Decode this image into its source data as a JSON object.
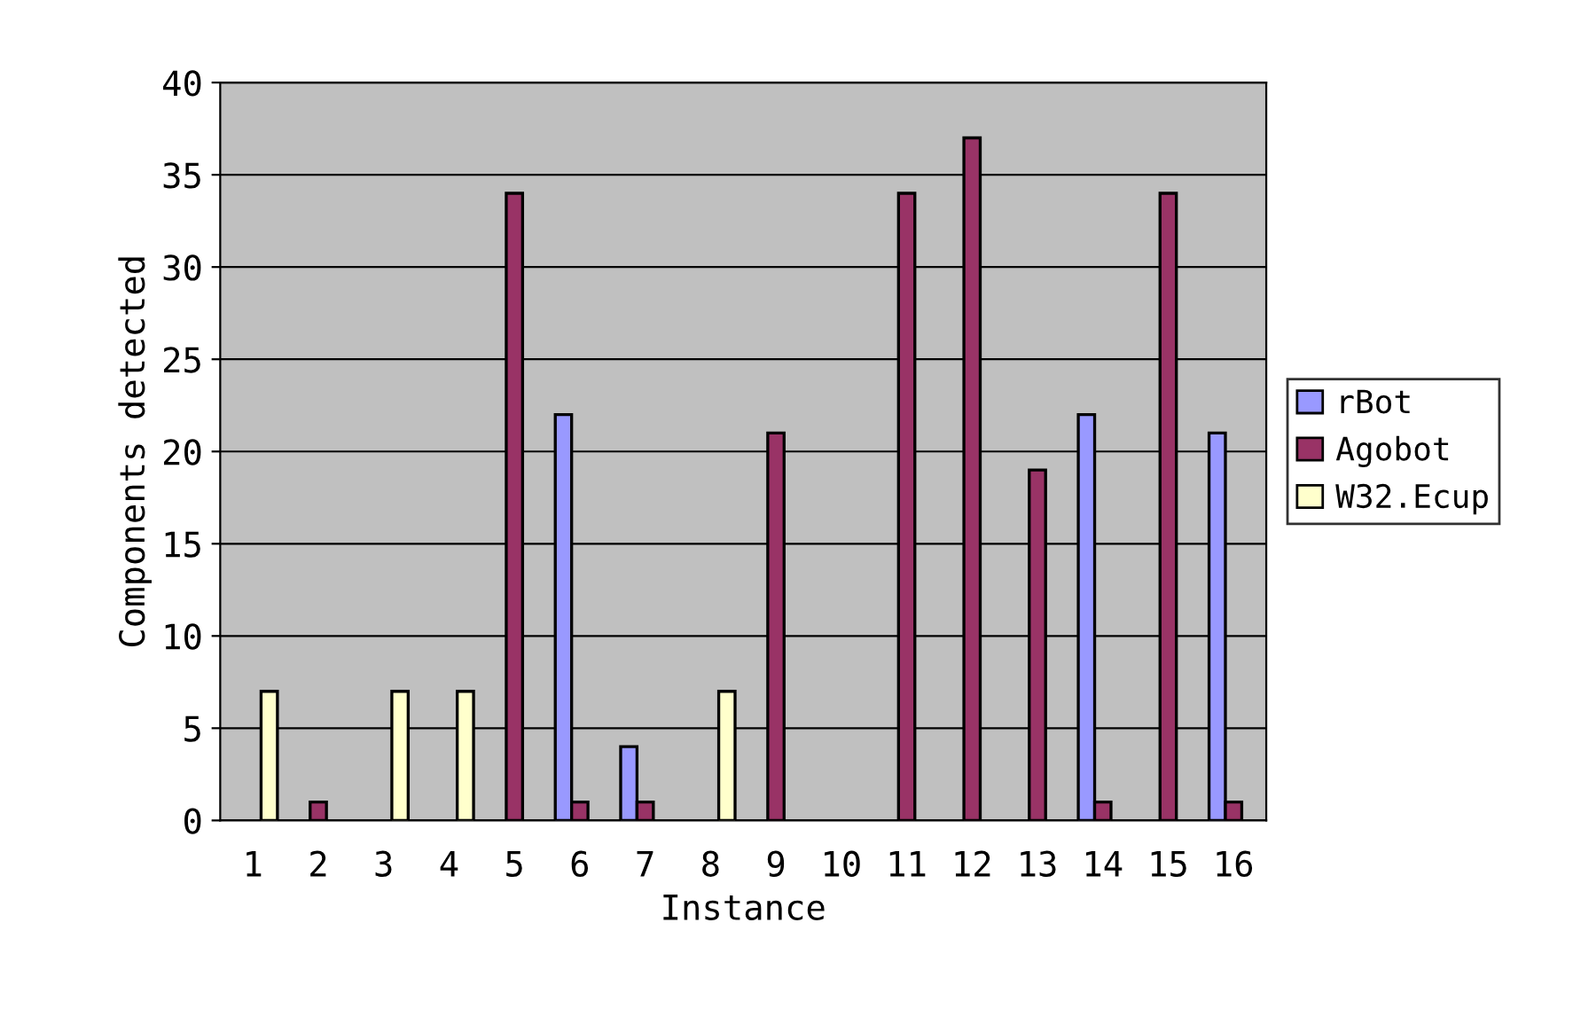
{
  "chart_data": {
    "type": "bar",
    "xlabel": "Instance",
    "ylabel": "Components detected",
    "categories": [
      "1",
      "2",
      "3",
      "4",
      "5",
      "6",
      "7",
      "8",
      "9",
      "10",
      "11",
      "12",
      "13",
      "14",
      "15",
      "16"
    ],
    "series": [
      {
        "name": "rBot",
        "color": "#9999ff",
        "values": [
          null,
          null,
          null,
          null,
          null,
          22,
          4,
          null,
          null,
          null,
          null,
          null,
          null,
          22,
          null,
          21
        ]
      },
      {
        "name": "Agobot",
        "color": "#993366",
        "values": [
          null,
          1,
          null,
          null,
          34,
          1,
          1,
          null,
          21,
          null,
          34,
          37,
          19,
          1,
          34,
          1
        ]
      },
      {
        "name": "W32.Ecup",
        "color": "#ffffcc",
        "values": [
          7,
          null,
          7,
          7,
          null,
          null,
          null,
          7,
          null,
          null,
          null,
          null,
          null,
          null,
          null,
          null
        ]
      }
    ],
    "ylim": [
      0,
      40
    ],
    "yticks": [
      0,
      5,
      10,
      15,
      20,
      25,
      30,
      35,
      40
    ],
    "grid": "y",
    "legend": "right"
  }
}
